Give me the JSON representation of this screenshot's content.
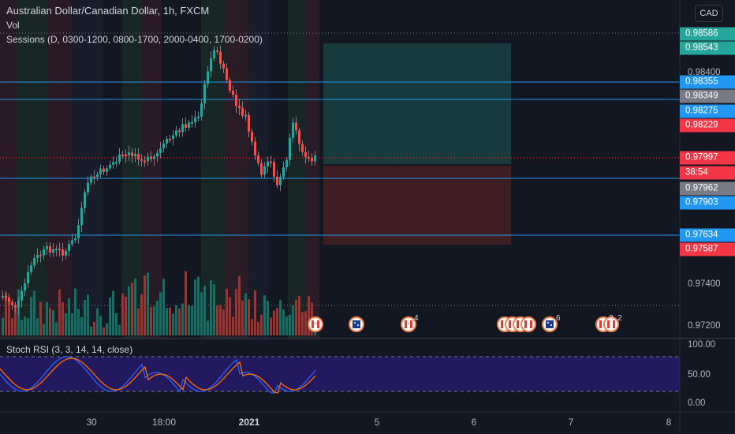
{
  "header": {
    "symbol_line": "Australian Dollar/Canadian Dollar, 1h, FXCM",
    "volume_label": "Vol",
    "sessions_label": "Sessions (D, 0300-1200, 0800-1700, 2000-0400, 1700-0200)",
    "currency_button": "CAD"
  },
  "price_axis": {
    "ticks": [
      "0.98400",
      "0.97400",
      "0.97200"
    ],
    "labels": [
      {
        "text": "0.98586",
        "color": "#26a69a"
      },
      {
        "text": "0.98543",
        "color": "#26a69a"
      },
      {
        "text": "0.98355",
        "color": "#2196f3"
      },
      {
        "text": "0.98349",
        "color": "#787b86"
      },
      {
        "text": "0.98275",
        "color": "#2196f3"
      },
      {
        "text": "0.98229",
        "color": "#f23645"
      },
      {
        "text": "0.97997",
        "color": "#f23645"
      },
      {
        "text": "38:54",
        "color": "#f23645"
      },
      {
        "text": "0.97962",
        "color": "#787b86"
      },
      {
        "text": "0.97903",
        "color": "#2196f3"
      },
      {
        "text": "0.97634",
        "color": "#2196f3"
      },
      {
        "text": "0.97587",
        "color": "#f23645"
      }
    ]
  },
  "time_axis": {
    "labels": [
      {
        "text": "30",
        "bold": false
      },
      {
        "text": "18:00",
        "bold": false
      },
      {
        "text": "2021",
        "bold": true
      },
      {
        "text": "5",
        "bold": false
      },
      {
        "text": "6",
        "bold": false
      },
      {
        "text": "7",
        "bold": false
      },
      {
        "text": "8",
        "bold": false
      }
    ]
  },
  "stoch": {
    "label": "Stoch RSI (3, 3, 14, 14, close)",
    "ticks": [
      "100.00",
      "50.00",
      "0.00"
    ]
  },
  "events": {
    "counts": [
      "4",
      "6",
      "3",
      "2"
    ],
    "flags": [
      "canada-flag",
      "australia-flag",
      "canada-flag",
      "canada-flag",
      "canada-flag",
      "canada-flag",
      "australia-flag",
      "canada-flag",
      "canada-flag"
    ]
  },
  "colors": {
    "background": "#131722",
    "up_candle": "#26a69a",
    "down_candle": "#ef5350",
    "horizontal_line": "#2196f3",
    "stoch_k": "#2962ff",
    "stoch_d": "#ff6d00",
    "stoch_band": "#311b92"
  }
}
